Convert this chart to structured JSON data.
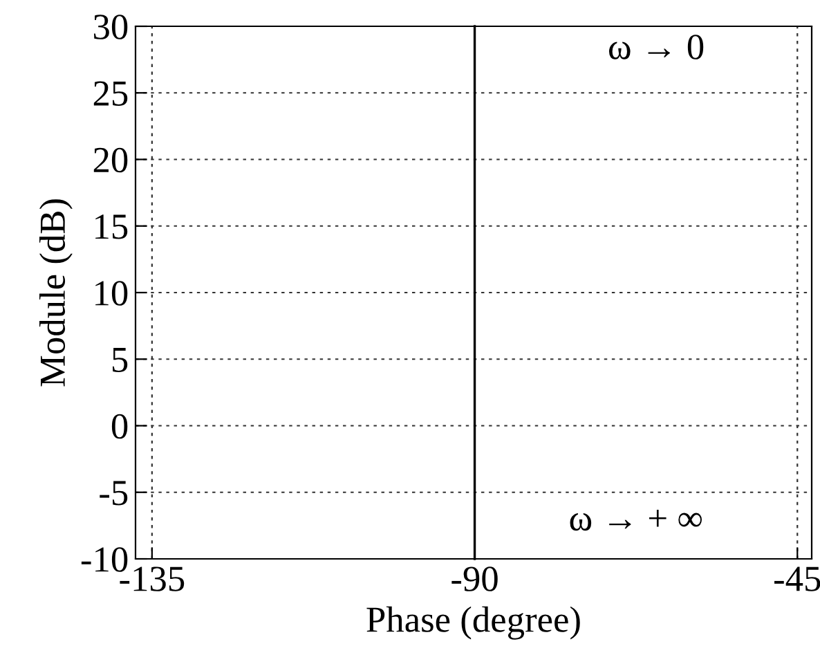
{
  "chart_data": {
    "type": "line",
    "xlabel": "Phase (degree)",
    "ylabel": "Module (dB)",
    "ref_lines": [
      {
        "axis": "x",
        "value": -90,
        "color": "#000000",
        "line_style": "solid"
      }
    ],
    "xlim": [
      -137.3,
      -43
    ],
    "ylim": [
      -10,
      30
    ],
    "xticks": [
      -135,
      -90,
      -45
    ],
    "yticks": [
      -10,
      -5,
      0,
      5,
      10,
      15,
      20,
      25,
      30
    ],
    "grid": true,
    "annotations": [
      "ω → 0",
      "ω → + ∞"
    ]
  }
}
